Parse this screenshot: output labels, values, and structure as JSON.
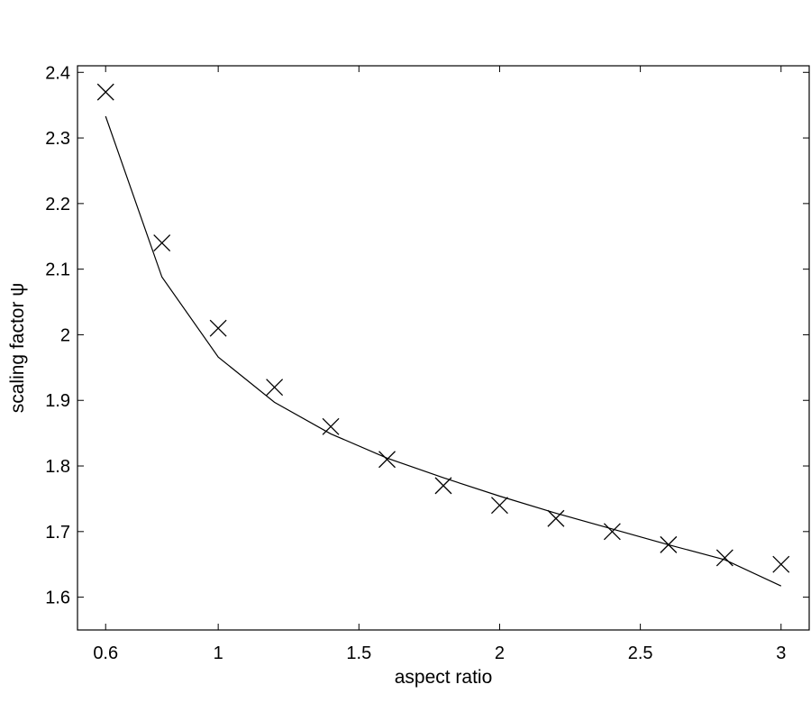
{
  "chart_data": {
    "type": "line",
    "title": "",
    "xlabel": "aspect ratio",
    "ylabel": "scaling factor ψ",
    "xlim": [
      0.5,
      3.1
    ],
    "ylim": [
      1.55,
      2.41
    ],
    "grid": false,
    "xticks": [
      0.6,
      1,
      1.5,
      2,
      2.5,
      3
    ],
    "xtick_labels": [
      "0.6",
      "1",
      "1.5",
      "2",
      "2.5",
      "3"
    ],
    "yticks": [
      1.6,
      1.7,
      1.8,
      1.9,
      2.0,
      2.1,
      2.2,
      2.3,
      2.4
    ],
    "ytick_labels": [
      "1.6",
      "1.7",
      "1.8",
      "1.9",
      "2",
      "2.1",
      "2.2",
      "2.3",
      "2.4"
    ],
    "series": [
      {
        "style": "line",
        "color": "#000000",
        "x": [
          0.6,
          0.8,
          1.0,
          1.2,
          1.4,
          1.6,
          1.8,
          2.0,
          2.2,
          2.4,
          2.6,
          2.8,
          3.0
        ],
        "y": [
          2.333,
          2.088,
          1.966,
          1.897,
          1.849,
          1.812,
          1.782,
          1.754,
          1.728,
          1.704,
          1.68,
          1.657,
          1.617
        ]
      },
      {
        "style": "markers",
        "marker": "x",
        "color": "#000000",
        "x": [
          0.6,
          0.8,
          1.0,
          1.2,
          1.4,
          1.6,
          1.8,
          2.0,
          2.2,
          2.4,
          2.6,
          2.8,
          3.0
        ],
        "y": [
          2.37,
          2.14,
          2.01,
          1.92,
          1.86,
          1.81,
          1.77,
          1.74,
          1.72,
          1.7,
          1.68,
          1.66,
          1.65
        ]
      }
    ]
  }
}
